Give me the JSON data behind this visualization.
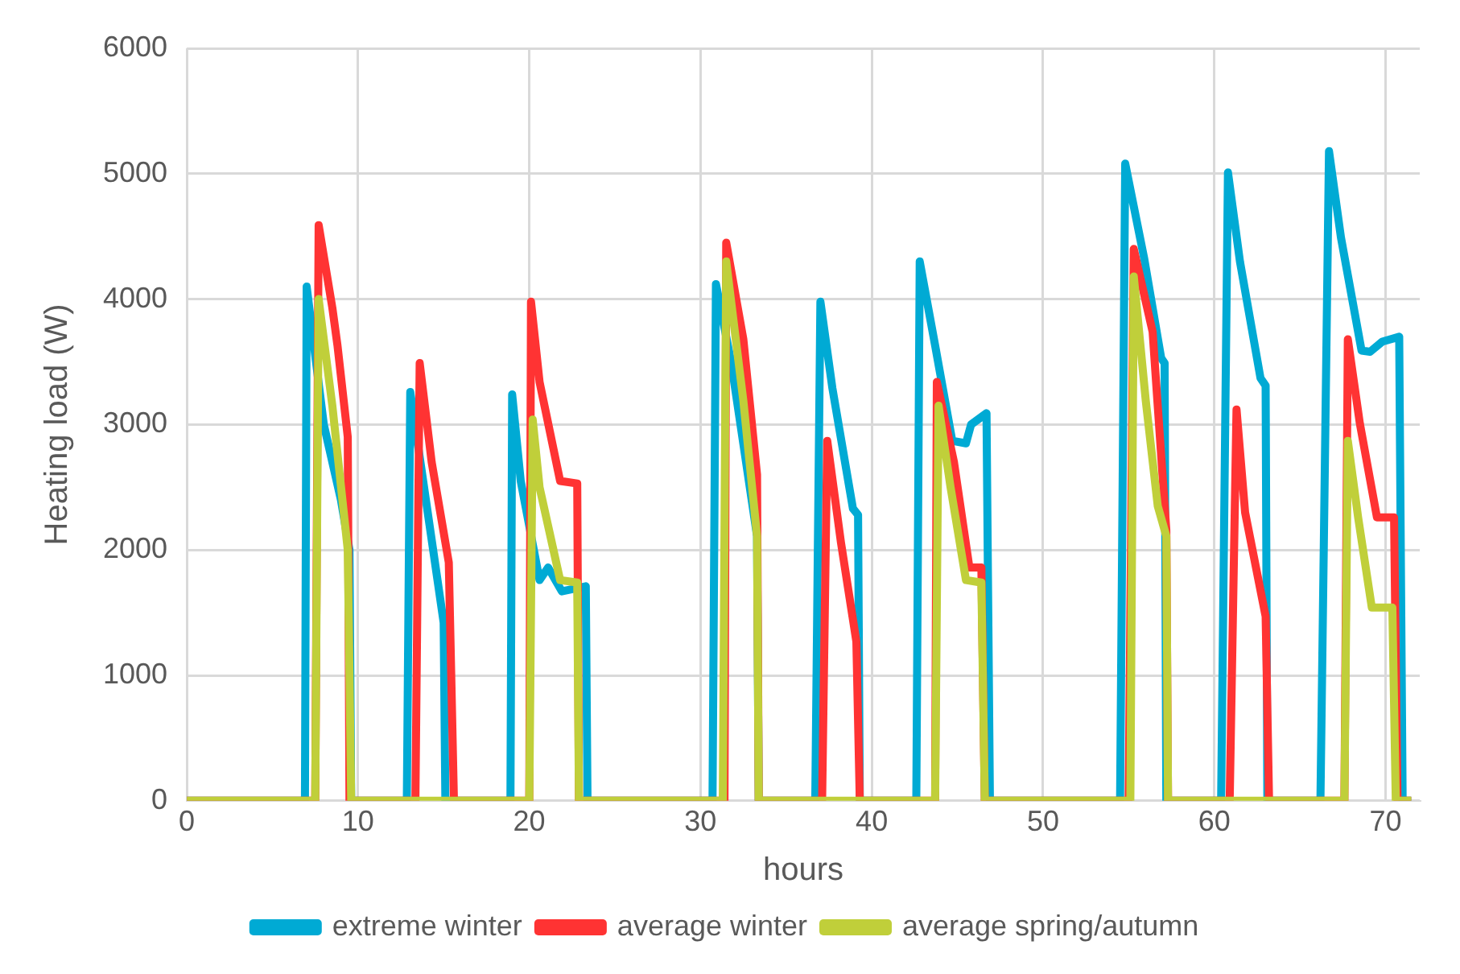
{
  "chart_data": {
    "type": "line",
    "xlabel": "hours",
    "ylabel": "Heating load (W)",
    "xlim": [
      0,
      72
    ],
    "xticks": [
      0,
      10,
      20,
      30,
      40,
      50,
      60,
      70
    ],
    "ylim": [
      0,
      6000
    ],
    "yticks": [
      0,
      1000,
      2000,
      3000,
      4000,
      5000,
      6000
    ],
    "grid": true,
    "legend": "bottom",
    "marker": "none",
    "line_style": "solid",
    "series": [
      {
        "name": "extreme winter",
        "color": "#00aad4",
        "x": [
          0,
          6.9,
          7.0,
          8.0,
          9.0,
          9.5,
          9.6,
          12.85,
          13.05,
          15.0,
          15.1,
          18.9,
          19.0,
          19.5,
          20.6,
          21.1,
          21.9,
          23.3,
          23.4,
          30.7,
          30.9,
          31.8,
          33.3,
          33.4,
          36.7,
          37.0,
          37.7,
          38.9,
          39.2,
          39.3,
          42.6,
          42.8,
          43.7,
          44.7,
          45.5,
          45.8,
          46.7,
          46.9,
          54.5,
          54.8,
          55.9,
          56.9,
          57.1,
          57.2,
          60.4,
          60.8,
          61.5,
          62.7,
          63.0,
          63.1,
          66.2,
          66.7,
          67.4,
          68.6,
          69.1,
          69.8,
          70.8,
          71.0,
          71.5
        ],
        "values": [
          0,
          0,
          4100,
          3000,
          2400,
          2000,
          0,
          0,
          3260,
          1420,
          0,
          0,
          3240,
          2550,
          1760,
          1860,
          1670,
          1710,
          0,
          0,
          4120,
          3490,
          2110,
          0,
          0,
          3980,
          3290,
          2330,
          2280,
          0,
          0,
          4300,
          3630,
          2870,
          2850,
          3000,
          3090,
          0,
          0,
          5080,
          4330,
          3530,
          3490,
          0,
          0,
          5010,
          4300,
          3370,
          3310,
          0,
          0,
          5180,
          4490,
          3590,
          3580,
          3660,
          3700,
          0,
          0
        ]
      },
      {
        "name": "average winter",
        "color": "#ff3333",
        "x": [
          0,
          7.5,
          7.7,
          8.5,
          8.8,
          9.4,
          9.5,
          13.35,
          13.6,
          14.3,
          15.3,
          15.6,
          20.0,
          20.1,
          20.6,
          21.8,
          22.8,
          22.9,
          31.4,
          31.5,
          32.5,
          33.3,
          33.4,
          37.1,
          37.4,
          38.2,
          39.1,
          39.3,
          43.7,
          43.8,
          44.8,
          45.7,
          46.4,
          46.6,
          55.0,
          55.3,
          56.4,
          57.2,
          57.3,
          60.9,
          61.3,
          61.8,
          63.0,
          63.2,
          67.6,
          67.8,
          68.5,
          69.5,
          70.5,
          70.7,
          71.5
        ],
        "values": [
          0,
          0,
          4590,
          3930,
          3630,
          2900,
          0,
          0,
          3490,
          2700,
          1900,
          0,
          0,
          3980,
          3340,
          2550,
          2530,
          0,
          0,
          4450,
          3680,
          2600,
          0,
          0,
          2870,
          2060,
          1270,
          0,
          0,
          3340,
          2700,
          1860,
          1860,
          0,
          0,
          4400,
          3740,
          2160,
          0,
          0,
          3120,
          2300,
          1470,
          0,
          0,
          3680,
          3010,
          2260,
          2260,
          0,
          0
        ]
      },
      {
        "name": "average spring/autumn",
        "color": "#c0cf3a",
        "x": [
          0,
          7.5,
          7.7,
          8.5,
          9.4,
          9.6,
          20.0,
          20.2,
          20.6,
          21.8,
          22.8,
          22.9,
          31.3,
          31.5,
          32.5,
          33.3,
          33.4,
          43.7,
          43.9,
          44.6,
          45.5,
          46.4,
          46.6,
          55.1,
          55.3,
          56.0,
          56.7,
          57.2,
          57.3,
          67.6,
          67.8,
          68.4,
          69.2,
          70.4,
          70.6,
          71.5
        ],
        "values": [
          0,
          0,
          4000,
          3150,
          2000,
          0,
          0,
          3040,
          2500,
          1760,
          1740,
          0,
          0,
          4300,
          3190,
          2110,
          0,
          0,
          3150,
          2500,
          1760,
          1740,
          0,
          0,
          4180,
          3190,
          2350,
          2110,
          0,
          0,
          2870,
          2260,
          1540,
          1540,
          0,
          0
        ]
      }
    ]
  }
}
